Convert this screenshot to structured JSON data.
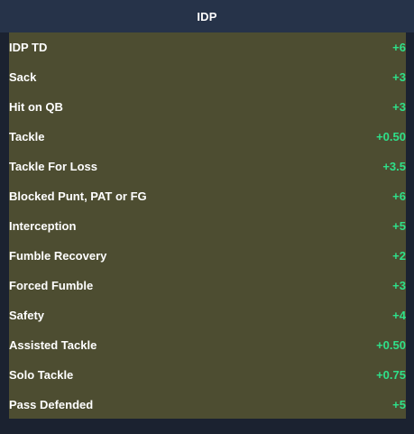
{
  "header": {
    "title": "IDP"
  },
  "rows": [
    {
      "label": "IDP TD",
      "value": "+6"
    },
    {
      "label": "Sack",
      "value": "+3"
    },
    {
      "label": "Hit on QB",
      "value": "+3"
    },
    {
      "label": "Tackle",
      "value": "+0.50"
    },
    {
      "label": "Tackle For Loss",
      "value": "+3.5"
    },
    {
      "label": "Blocked Punt, PAT or FG",
      "value": "+6"
    },
    {
      "label": "Interception",
      "value": "+5"
    },
    {
      "label": "Fumble Recovery",
      "value": "+2"
    },
    {
      "label": "Forced Fumble",
      "value": "+3"
    },
    {
      "label": "Safety",
      "value": "+4"
    },
    {
      "label": "Assisted Tackle",
      "value": "+0.50"
    },
    {
      "label": "Solo Tackle",
      "value": "+0.75"
    },
    {
      "label": "Pass Defended",
      "value": "+5"
    }
  ],
  "colors": {
    "background": "#1b2230",
    "header_bg": "#263349",
    "table_bg": "#4d4d31",
    "label_text": "#ffffff",
    "value_text": "#2ee08a"
  }
}
